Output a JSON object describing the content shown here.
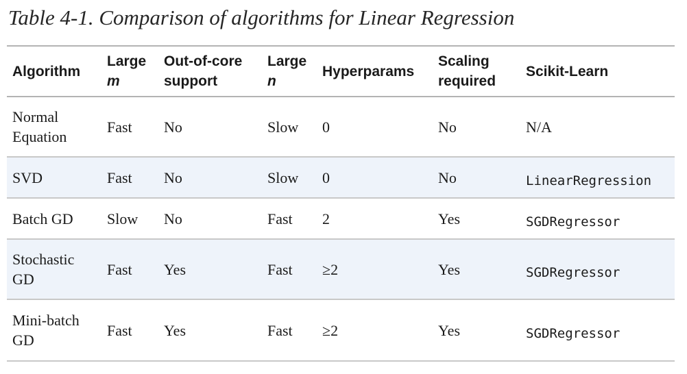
{
  "caption": "Table 4-1. Comparison of algorithms for Linear Regression",
  "table": {
    "headers": {
      "algorithm": "Algorithm",
      "large_m_prefix": "Large",
      "large_m_var": "m",
      "out_of_core_line1": "Out-of-core",
      "out_of_core_line2": "support",
      "large_n_prefix": "Large",
      "large_n_var": "n",
      "hyperparams": "Hyperparams",
      "scaling_line1": "Scaling",
      "scaling_line2": "required",
      "scikit": "Scikit-Learn"
    },
    "rows": [
      {
        "algorithm_line1": "Normal",
        "algorithm_line2": "Equation",
        "large_m": "Fast",
        "out_of_core": "No",
        "large_n": "Slow",
        "hyperparams": "0",
        "scaling": "No",
        "scikit": "N/A"
      },
      {
        "algorithm_line1": "SVD",
        "algorithm_line2": "",
        "large_m": "Fast",
        "out_of_core": "No",
        "large_n": "Slow",
        "hyperparams": "0",
        "scaling": "No",
        "scikit": "LinearRegression"
      },
      {
        "algorithm_line1": "Batch GD",
        "algorithm_line2": "",
        "large_m": "Slow",
        "out_of_core": "No",
        "large_n": "Fast",
        "hyperparams": "2",
        "scaling": "Yes",
        "scikit": "SGDRegressor"
      },
      {
        "algorithm_line1": "Stochastic",
        "algorithm_line2": "GD",
        "large_m": "Fast",
        "out_of_core": "Yes",
        "large_n": "Fast",
        "hyperparams": "≥2",
        "scaling": "Yes",
        "scikit": "SGDRegressor"
      },
      {
        "algorithm_line1": "Mini-batch",
        "algorithm_line2": "GD",
        "large_m": "Fast",
        "out_of_core": "Yes",
        "large_n": "Fast",
        "hyperparams": "≥2",
        "scaling": "Yes",
        "scikit": "SGDRegressor"
      }
    ]
  },
  "colors": {
    "alt_row_background": "#eef3fa",
    "rule_color": "#b3b3b3"
  }
}
